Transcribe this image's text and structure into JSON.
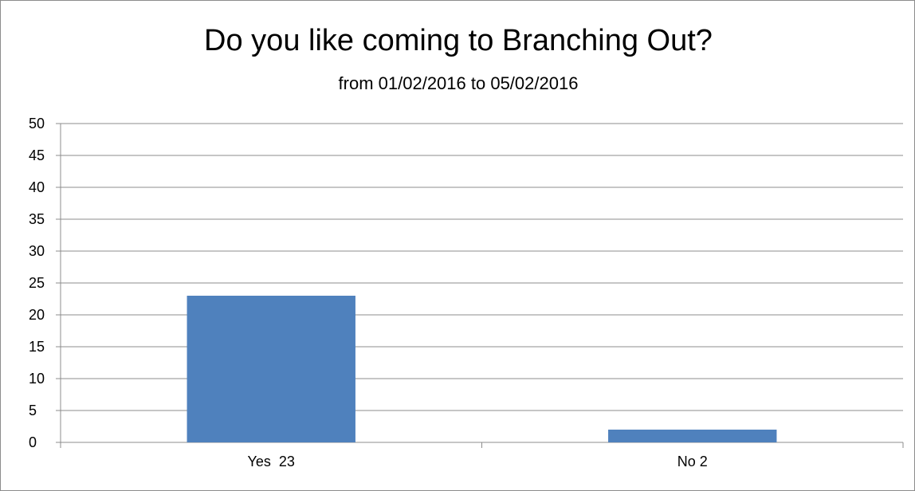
{
  "chart_data": {
    "type": "bar",
    "title": "Do you like coming to Branching Out?",
    "subtitle": "from 01/02/2016 to 05/02/2016",
    "categories": [
      "Yes  23",
      "No 2"
    ],
    "values": [
      23,
      2
    ],
    "ylim": [
      0,
      50
    ],
    "yticks": [
      0,
      5,
      10,
      15,
      20,
      25,
      30,
      35,
      40,
      45,
      50
    ],
    "grid": true,
    "legend": "none",
    "colors": {
      "bar": "#4f81bd",
      "grid": "#8c8c8c",
      "axis": "#8c8c8c"
    }
  }
}
